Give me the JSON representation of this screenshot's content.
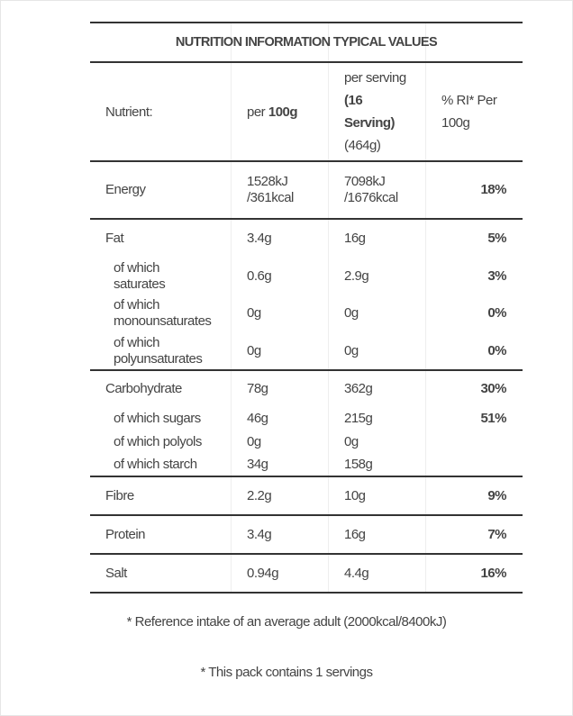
{
  "title": "NUTRITION INFORMATION TYPICAL VALUES",
  "header": {
    "nutrient": "Nutrient:",
    "per100_prefix": "per ",
    "per100_bold": "100g",
    "serving_line1": "per serving",
    "serving_bold1": "(16",
    "serving_bold2": "Serving)",
    "serving_line4": "(464g)",
    "ri_line1": "% RI* Per",
    "ri_line2": "100g"
  },
  "groups": [
    {
      "height": 62,
      "rows": [
        {
          "name": "Energy",
          "sub": false,
          "per100": "1528kJ\n/361kcal",
          "serving": "7098kJ\n/1676kcal",
          "ri": "18%",
          "h": 62
        }
      ]
    },
    {
      "height": 166,
      "rows": [
        {
          "name": "Fat",
          "sub": false,
          "per100": "3.4g",
          "serving": "16g",
          "ri": "5%",
          "h": 42
        },
        {
          "name": "of which\nsaturates",
          "sub": false,
          "isSub": true,
          "per100": "0.6g",
          "serving": "2.9g",
          "ri": "3%",
          "h": 41
        },
        {
          "name": "of which\nmonounsaturates",
          "isSub": true,
          "per100": "0g",
          "serving": "0g",
          "ri": "0%",
          "h": 42
        },
        {
          "name": "of which\npolyunsaturates",
          "isSub": true,
          "per100": "0g",
          "serving": "0g",
          "ri": "0%",
          "h": 41
        }
      ]
    },
    {
      "height": 116,
      "rows": [
        {
          "name": "Carbohydrate",
          "per100": "78g",
          "serving": "362g",
          "ri": "30%",
          "h": 40
        },
        {
          "name": "of which sugars",
          "isSub": true,
          "per100": "46g",
          "serving": "215g",
          "ri": "51%",
          "h": 26
        },
        {
          "name": "of which polyols",
          "isSub": true,
          "per100": "0g",
          "serving": "0g",
          "ri": "",
          "h": 25
        },
        {
          "name": "of which starch",
          "isSub": true,
          "per100": "34g",
          "serving": "158g",
          "ri": "",
          "h": 25
        }
      ]
    },
    {
      "height": 41,
      "rows": [
        {
          "name": "Fibre",
          "per100": "2.2g",
          "serving": "10g",
          "ri": "9%",
          "h": 41
        }
      ]
    },
    {
      "height": 41,
      "rows": [
        {
          "name": "Protein",
          "per100": "3.4g",
          "serving": "16g",
          "ri": "7%",
          "h": 41
        }
      ]
    },
    {
      "height": 41,
      "rows": [
        {
          "name": "Salt",
          "per100": "0.94g",
          "serving": "4.4g",
          "ri": "16%",
          "h": 41
        }
      ]
    }
  ],
  "footnotes": {
    "reference": "* Reference intake of an average adult (2000kcal/8400kJ)",
    "pack": "* This pack contains 1 servings"
  }
}
